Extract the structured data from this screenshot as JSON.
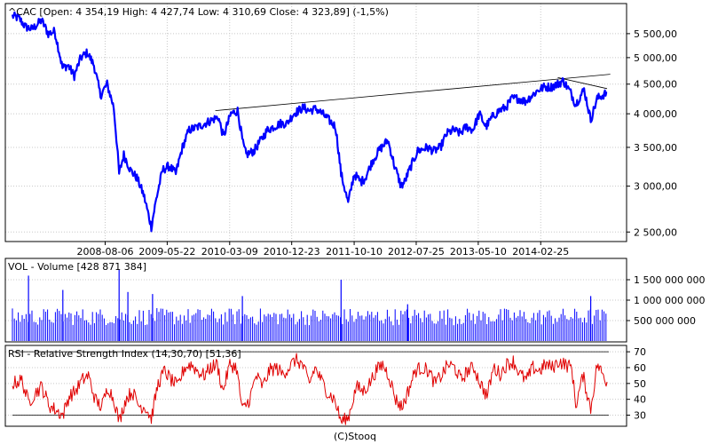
{
  "chart_data": [
    {
      "type": "line",
      "panel": "price",
      "title": "^CAC [Open: 4 354,19  High: 4 427,74  Low: 4 310,69  Close: 4 323,89] (-1,5%)",
      "y_scale": "log",
      "ylim": [
        2450,
        5900
      ],
      "xlim": [
        "2007-06-01",
        "2014-12-31"
      ],
      "x_tick_labels": [
        "2008-08-06",
        "2009-05-22",
        "2010-03-09",
        "2010-12-23",
        "2011-10-10",
        "2012-07-25",
        "2013-05-10",
        "2014-02-25"
      ],
      "y_tick_labels": [
        "5 500,00",
        "5 000,00",
        "4 500,00",
        "4 000,00",
        "3 500,00",
        "3 000,00",
        "2 500,00"
      ],
      "y_tick_values": [
        5500,
        5000,
        4500,
        4000,
        3500,
        3000,
        2500
      ],
      "series_color": "#0000ff",
      "trendline_color": "#000000",
      "trendlines": [
        {
          "x": [
            "2010-01-01",
            "2015-01-15"
          ],
          "y": [
            4050,
            4680
          ]
        },
        {
          "x": [
            "2014-05-15",
            "2014-12-31"
          ],
          "y": [
            4620,
            4420
          ]
        }
      ],
      "series": [
        {
          "x": [
            "2007-06-01",
            "2007-07-01",
            "2007-08-01",
            "2007-09-01",
            "2007-10-15",
            "2007-11-15",
            "2007-12-15",
            "2008-01-20",
            "2008-02-15",
            "2008-03-15",
            "2008-04-15",
            "2008-05-15",
            "2008-06-15",
            "2008-07-15",
            "2008-08-15",
            "2008-09-15",
            "2008-10-10",
            "2008-11-01",
            "2008-12-01",
            "2009-01-01",
            "2009-02-01",
            "2009-03-09",
            "2009-04-01",
            "2009-05-01",
            "2009-06-01",
            "2009-07-01",
            "2009-08-01",
            "2009-09-01",
            "2009-10-15",
            "2009-11-15",
            "2009-12-15",
            "2010-01-15",
            "2010-02-08",
            "2010-03-15",
            "2010-04-15",
            "2010-05-10",
            "2010-05-25",
            "2010-06-30",
            "2010-08-01",
            "2010-09-01",
            "2010-10-01",
            "2010-11-01",
            "2010-12-01",
            "2011-01-01",
            "2011-02-15",
            "2011-03-15",
            "2011-04-15",
            "2011-05-15",
            "2011-06-15",
            "2011-07-15",
            "2011-08-10",
            "2011-09-12",
            "2011-10-10",
            "2011-11-10",
            "2011-12-01",
            "2012-01-01",
            "2012-02-01",
            "2012-03-15",
            "2012-04-15",
            "2012-05-15",
            "2012-06-01",
            "2012-07-01",
            "2012-08-01",
            "2012-09-15",
            "2012-10-15",
            "2012-11-15",
            "2012-12-15",
            "2013-01-15",
            "2013-02-15",
            "2013-03-15",
            "2013-04-15",
            "2013-05-15",
            "2013-06-15",
            "2013-07-15",
            "2013-08-15",
            "2013-09-15",
            "2013-10-15",
            "2013-11-15",
            "2013-12-15",
            "2014-01-15",
            "2014-02-15",
            "2014-03-15",
            "2014-04-15",
            "2014-05-15",
            "2014-06-10",
            "2014-07-15",
            "2014-08-07",
            "2014-09-15",
            "2014-10-16",
            "2014-11-15",
            "2014-12-31"
          ],
          "y": [
            5900,
            5850,
            5650,
            5600,
            5800,
            5500,
            5550,
            4800,
            4850,
            4650,
            5000,
            5100,
            4850,
            4300,
            4500,
            4100,
            3150,
            3400,
            3200,
            3100,
            2900,
            2550,
            2850,
            3200,
            3250,
            3150,
            3500,
            3750,
            3800,
            3850,
            3900,
            3950,
            3650,
            4000,
            4050,
            3550,
            3400,
            3450,
            3600,
            3750,
            3800,
            3850,
            3850,
            4000,
            4100,
            4050,
            4080,
            4000,
            3900,
            3800,
            3150,
            2800,
            3150,
            3050,
            3100,
            3300,
            3450,
            3600,
            3250,
            3000,
            3050,
            3250,
            3450,
            3500,
            3450,
            3500,
            3700,
            3750,
            3700,
            3800,
            3750,
            4000,
            3800,
            3950,
            4050,
            4100,
            4250,
            4250,
            4200,
            4300,
            4400,
            4450,
            4450,
            4500,
            4560,
            4350,
            4150,
            4400,
            3900,
            4250,
            4350
          ]
        }
      ]
    },
    {
      "type": "bar",
      "panel": "volume",
      "title": "VOL - Volume [428 871 384]",
      "ylim": [
        0,
        2000000000
      ],
      "y_tick_labels": [
        "1 500 000 000",
        "1 000 000 000",
        "500 000 000"
      ],
      "y_tick_values": [
        1500000000,
        1000000000,
        500000000
      ],
      "series_color": "#0000ff",
      "x_range": [
        "2007-06-01",
        "2014-12-31"
      ],
      "base_level": 700000000,
      "spikes": [
        {
          "x": "2007-08-15",
          "value": 1600000000
        },
        {
          "x": "2008-01-22",
          "value": 1250000000
        },
        {
          "x": "2008-10-10",
          "value": 1750000000
        },
        {
          "x": "2008-11-20",
          "value": 1200000000
        },
        {
          "x": "2009-03-15",
          "value": 1150000000
        },
        {
          "x": "2010-05-07",
          "value": 1100000000
        },
        {
          "x": "2011-08-10",
          "value": 1500000000
        },
        {
          "x": "2012-06-15",
          "value": 900000000
        },
        {
          "x": "2014-10-16",
          "value": 1100000000
        }
      ]
    },
    {
      "type": "line",
      "panel": "rsi",
      "title": "RSI - Relative Strength Index (14,30,70) [51,36]",
      "ylim": [
        23,
        74
      ],
      "y_tick_labels": [
        "70",
        "60",
        "50",
        "40",
        "30"
      ],
      "y_tick_values": [
        70,
        60,
        50,
        40,
        30
      ],
      "threshold_levels": [
        30,
        70
      ],
      "series_color": "#e00000",
      "series": [
        {
          "x": [
            "2007-06-01",
            "2007-07-15",
            "2007-08-15",
            "2007-09-15",
            "2007-10-15",
            "2007-11-20",
            "2008-01-22",
            "2008-02-20",
            "2008-03-20",
            "2008-04-20",
            "2008-05-20",
            "2008-06-20",
            "2008-07-20",
            "2008-08-20",
            "2008-09-20",
            "2008-10-10",
            "2008-11-10",
            "2008-12-10",
            "2009-01-10",
            "2009-02-10",
            "2009-03-09",
            "2009-04-10",
            "2009-05-10",
            "2009-06-10",
            "2009-07-10",
            "2009-08-10",
            "2009-09-10",
            "2009-10-10",
            "2009-11-10",
            "2009-12-10",
            "2010-01-10",
            "2010-02-05",
            "2010-03-10",
            "2010-04-10",
            "2010-05-07",
            "2010-06-10",
            "2010-07-10",
            "2010-08-10",
            "2010-09-10",
            "2010-10-10",
            "2010-11-10",
            "2010-12-10",
            "2011-01-10",
            "2011-02-10",
            "2011-03-15",
            "2011-04-10",
            "2011-05-10",
            "2011-06-10",
            "2011-07-10",
            "2011-08-10",
            "2011-09-12",
            "2011-10-20",
            "2011-11-20",
            "2011-12-20",
            "2012-01-20",
            "2012-02-20",
            "2012-03-20",
            "2012-04-20",
            "2012-05-20",
            "2012-06-20",
            "2012-07-20",
            "2012-08-20",
            "2012-09-20",
            "2012-10-20",
            "2012-11-20",
            "2012-12-20",
            "2013-01-20",
            "2013-02-20",
            "2013-03-20",
            "2013-04-20",
            "2013-05-20",
            "2013-06-20",
            "2013-07-20",
            "2013-08-20",
            "2013-09-20",
            "2013-10-20",
            "2013-11-20",
            "2013-12-20",
            "2014-01-20",
            "2014-02-20",
            "2014-03-20",
            "2014-04-20",
            "2014-05-20",
            "2014-06-20",
            "2014-07-20",
            "2014-08-07",
            "2014-09-10",
            "2014-10-16",
            "2014-11-15",
            "2014-12-31"
          ],
          "y": [
            50,
            52,
            38,
            44,
            48,
            36,
            30,
            42,
            45,
            52,
            55,
            40,
            35,
            48,
            38,
            26,
            40,
            45,
            36,
            35,
            28,
            50,
            58,
            52,
            48,
            60,
            62,
            58,
            55,
            60,
            62,
            45,
            62,
            60,
            33,
            40,
            55,
            48,
            58,
            60,
            56,
            60,
            65,
            62,
            50,
            60,
            52,
            44,
            40,
            26,
            28,
            48,
            45,
            50,
            58,
            62,
            55,
            40,
            35,
            46,
            58,
            60,
            58,
            50,
            55,
            62,
            60,
            52,
            58,
            60,
            50,
            42,
            60,
            56,
            62,
            64,
            56,
            52,
            60,
            58,
            62,
            60,
            64,
            62,
            60,
            36,
            55,
            34,
            62,
            51
          ]
        }
      ]
    }
  ],
  "footer": {
    "credit": "(C)Stooq"
  }
}
